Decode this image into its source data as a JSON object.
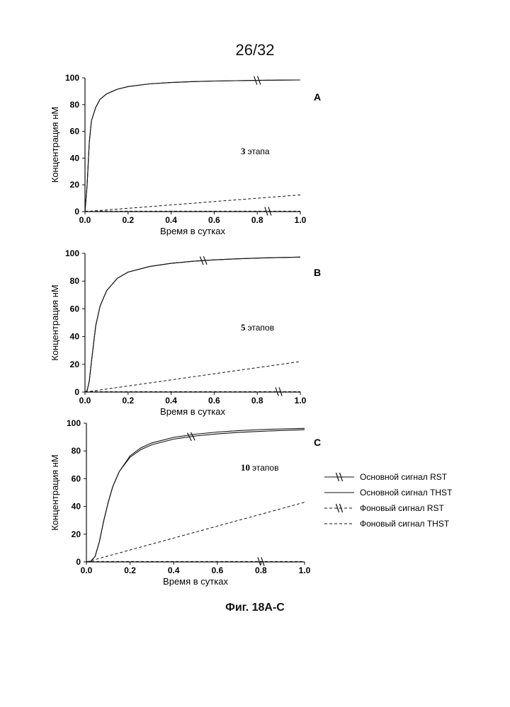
{
  "page_number": "26/32",
  "caption": "Фиг. 18A-C",
  "legend": [
    {
      "label": "Основной сигнал RST",
      "style": "solid",
      "marker": true
    },
    {
      "label": "Основной сигнал THST",
      "style": "solid",
      "marker": false
    },
    {
      "label": "Фоновый сигнал RST",
      "style": "dashed",
      "marker": true
    },
    {
      "label": "Фоновый сигнал THST",
      "style": "dashed",
      "marker": false
    }
  ],
  "chart_data": [
    {
      "type": "line",
      "panel_label": "A",
      "annotation_num": "3",
      "annotation_text": "этапа",
      "xlabel": "Время в сутках",
      "ylabel": "Концентрация нМ",
      "xlim": [
        0,
        1
      ],
      "ylim": [
        0,
        100
      ],
      "xticks": [
        "0.0",
        "0.2",
        "0.4",
        "0.6",
        "0.8",
        "1.0"
      ],
      "yticks": [
        "0",
        "20",
        "40",
        "60",
        "80",
        "100"
      ],
      "series": [
        {
          "name": "Основной сигнал RST",
          "style": "solid",
          "marker_at": 0.8,
          "x": [
            0,
            0.01,
            0.02,
            0.03,
            0.05,
            0.07,
            0.1,
            0.15,
            0.2,
            0.3,
            0.4,
            0.5,
            0.6,
            0.7,
            0.8,
            0.9,
            1.0
          ],
          "y": [
            0,
            20,
            52,
            68,
            78,
            84,
            88,
            91.5,
            93.5,
            95.5,
            96.5,
            97.2,
            97.6,
            97.9,
            98.1,
            98.3,
            98.4
          ]
        },
        {
          "name": "Основной сигнал THST",
          "style": "solid",
          "marker_at": null,
          "x": [
            0,
            0.01,
            0.02,
            0.03,
            0.05,
            0.07,
            0.1,
            0.15,
            0.2,
            0.3,
            0.4,
            0.5,
            0.6,
            0.7,
            0.8,
            0.9,
            1.0
          ],
          "y": [
            0,
            20,
            52,
            68,
            78,
            84,
            88,
            91.5,
            93.5,
            95.5,
            96.5,
            97.2,
            97.6,
            97.9,
            98.1,
            98.3,
            98.4
          ]
        },
        {
          "name": "Фоновый сигнал RST",
          "style": "dashed",
          "marker_at": 0.85,
          "x": [
            0,
            1.0
          ],
          "y": [
            0.3,
            0.3
          ]
        },
        {
          "name": "Фоновый сигнал THST",
          "style": "dashed",
          "marker_at": null,
          "x": [
            0,
            0.2,
            0.4,
            0.6,
            0.8,
            1.0
          ],
          "y": [
            0,
            2.5,
            5,
            7.5,
            10,
            12.5
          ]
        }
      ]
    },
    {
      "type": "line",
      "panel_label": "B",
      "annotation_num": "5",
      "annotation_text": "этапов",
      "xlabel": "Время в сутках",
      "ylabel": "Концентрация нМ",
      "xlim": [
        0,
        1
      ],
      "ylim": [
        0,
        100
      ],
      "xticks": [
        "0.0",
        "0.2",
        "0.4",
        "0.6",
        "0.8",
        "1.0"
      ],
      "yticks": [
        "0",
        "20",
        "40",
        "60",
        "80",
        "100"
      ],
      "series": [
        {
          "name": "Основной сигнал RST",
          "style": "solid",
          "marker_at": 0.55,
          "x": [
            0,
            0.01,
            0.02,
            0.03,
            0.05,
            0.07,
            0.1,
            0.15,
            0.2,
            0.3,
            0.4,
            0.5,
            0.6,
            0.7,
            0.8,
            0.9,
            1.0
          ],
          "y": [
            0,
            1,
            8,
            22,
            48,
            62,
            73,
            82,
            86.5,
            90.5,
            92.8,
            94.3,
            95.3,
            96,
            96.6,
            97,
            97.3
          ]
        },
        {
          "name": "Основной сигнал THST",
          "style": "solid",
          "marker_at": null,
          "x": [
            0,
            0.01,
            0.02,
            0.03,
            0.05,
            0.07,
            0.1,
            0.15,
            0.2,
            0.3,
            0.4,
            0.5,
            0.6,
            0.7,
            0.8,
            0.9,
            1.0
          ],
          "y": [
            0,
            1,
            8,
            22,
            48,
            62,
            73,
            82,
            86.5,
            90.5,
            92.8,
            94.3,
            95.3,
            96,
            96.6,
            97,
            97.3
          ]
        },
        {
          "name": "Фоновый сигнал RST",
          "style": "dashed",
          "marker_at": 0.9,
          "x": [
            0,
            1.0
          ],
          "y": [
            0.3,
            0.3
          ]
        },
        {
          "name": "Фоновый сигнал THST",
          "style": "dashed",
          "marker_at": null,
          "x": [
            0,
            0.2,
            0.4,
            0.6,
            0.8,
            1.0
          ],
          "y": [
            0,
            4.4,
            8.8,
            13.2,
            17.6,
            22
          ]
        }
      ]
    },
    {
      "type": "line",
      "panel_label": "C",
      "annotation_num": "10",
      "annotation_text": "этапов",
      "xlabel": "Время в сутках",
      "ylabel": "Концентрация нМ",
      "xlim": [
        0,
        1
      ],
      "ylim": [
        0,
        100
      ],
      "xticks": [
        "0.0",
        "0.2",
        "0.4",
        "0.6",
        "0.8",
        "1.0"
      ],
      "yticks": [
        "0",
        "20",
        "40",
        "60",
        "80",
        "100"
      ],
      "series": [
        {
          "name": "Основной сигнал RST",
          "style": "solid",
          "marker_at": 0.48,
          "x": [
            0,
            0.02,
            0.04,
            0.06,
            0.08,
            0.1,
            0.12,
            0.15,
            0.2,
            0.25,
            0.3,
            0.4,
            0.5,
            0.6,
            0.7,
            0.8,
            0.9,
            1.0
          ],
          "y": [
            0,
            0.5,
            4,
            15,
            30,
            43,
            54,
            65,
            75.5,
            81,
            84.5,
            88.5,
            90.8,
            92.3,
            93.4,
            94.2,
            94.8,
            95.3
          ]
        },
        {
          "name": "Основной сигнал THST",
          "style": "solid",
          "marker_at": null,
          "x": [
            0,
            0.02,
            0.04,
            0.06,
            0.08,
            0.1,
            0.12,
            0.15,
            0.2,
            0.25,
            0.3,
            0.4,
            0.5,
            0.6,
            0.7,
            0.8,
            0.9,
            1.0
          ],
          "y": [
            0,
            0.5,
            4,
            15,
            30,
            43,
            54,
            65,
            76.5,
            82.3,
            85.8,
            89.8,
            92.1,
            93.6,
            94.7,
            95.4,
            95.9,
            96.3
          ]
        },
        {
          "name": "Фоновый сигнал RST",
          "style": "dashed",
          "marker_at": 0.8,
          "x": [
            0,
            1.0
          ],
          "y": [
            0.3,
            0.3
          ]
        },
        {
          "name": "Фоновый сигнал THST",
          "style": "dashed",
          "marker_at": null,
          "x": [
            0,
            0.2,
            0.4,
            0.6,
            0.8,
            1.0
          ],
          "y": [
            0,
            8.6,
            17.2,
            25.8,
            34.4,
            43
          ]
        }
      ]
    }
  ]
}
